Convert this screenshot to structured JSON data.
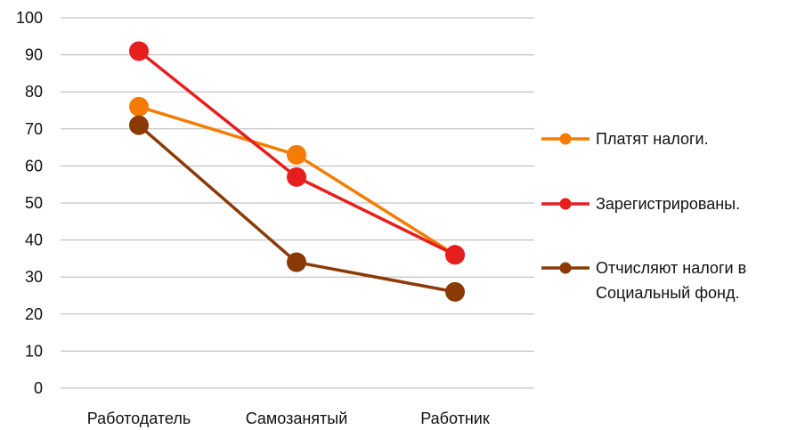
{
  "chart_data": {
    "type": "line",
    "title": "",
    "xlabel": "",
    "ylabel": "",
    "categories": [
      "Работодатель",
      "Самозанятый",
      "Работник"
    ],
    "ylim": [
      0,
      100
    ],
    "yticks": [
      0,
      10,
      20,
      30,
      40,
      50,
      60,
      70,
      80,
      90,
      100
    ],
    "grid": true,
    "legend_position": "right",
    "series": [
      {
        "name": "Платят налоги.",
        "values": [
          76,
          63,
          36
        ],
        "color": "#F57C00"
      },
      {
        "name": "Зарегистрированы.",
        "values": [
          91,
          57,
          36
        ],
        "color": "#E61E1E"
      },
      {
        "name_lines": [
          "Отчисляют налоги в",
          "Социальный фонд."
        ],
        "values": [
          71,
          34,
          26
        ],
        "color": "#8B3A06"
      }
    ]
  }
}
